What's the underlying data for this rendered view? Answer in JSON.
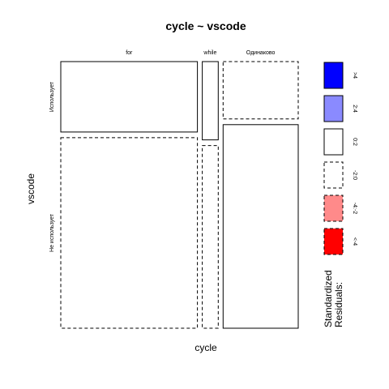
{
  "chart_data": {
    "type": "mosaic",
    "title": "cycle ~ vscode",
    "xlabel": "cycle",
    "ylabel": "vscode",
    "x_categories": [
      "for",
      "while",
      "Одинаково"
    ],
    "y_categories": [
      "Использует",
      "Не использует"
    ],
    "cells": [
      {
        "x": "for",
        "y": "Использует",
        "proportion_x": 0.6,
        "proportion_y": 0.27,
        "residual_class": "0:2"
      },
      {
        "x": "for",
        "y": "Не использует",
        "proportion_x": 0.6,
        "proportion_y": 0.73,
        "residual_class": "-2:0"
      },
      {
        "x": "while",
        "y": "Использует",
        "proportion_x": 0.07,
        "proportion_y": 0.3,
        "residual_class": "0:2"
      },
      {
        "x": "while",
        "y": "Не использует",
        "proportion_x": 0.07,
        "proportion_y": 0.7,
        "residual_class": "-2:0"
      },
      {
        "x": "Одинаково",
        "y": "Использует",
        "proportion_x": 0.33,
        "proportion_y": 0.22,
        "residual_class": "-2:0"
      },
      {
        "x": "Одинаково",
        "y": "Не использует",
        "proportion_x": 0.33,
        "proportion_y": 0.78,
        "residual_class": "0:2"
      }
    ],
    "legend": {
      "title": "Standardized Residuals:",
      "placement": "right",
      "entries": [
        {
          "label": ">4",
          "fill": "#0000ff",
          "dashed": false
        },
        {
          "label": "2:4",
          "fill": "#8a8aff",
          "dashed": false
        },
        {
          "label": "0:2",
          "fill": "#ffffff",
          "dashed": false
        },
        {
          "label": "-2:0",
          "fill": "#ffffff",
          "dashed": true
        },
        {
          "label": "-4:-2",
          "fill": "#ff8a8a",
          "dashed": true
        },
        {
          "label": "<-4",
          "fill": "#ff0000",
          "dashed": true
        }
      ]
    }
  }
}
